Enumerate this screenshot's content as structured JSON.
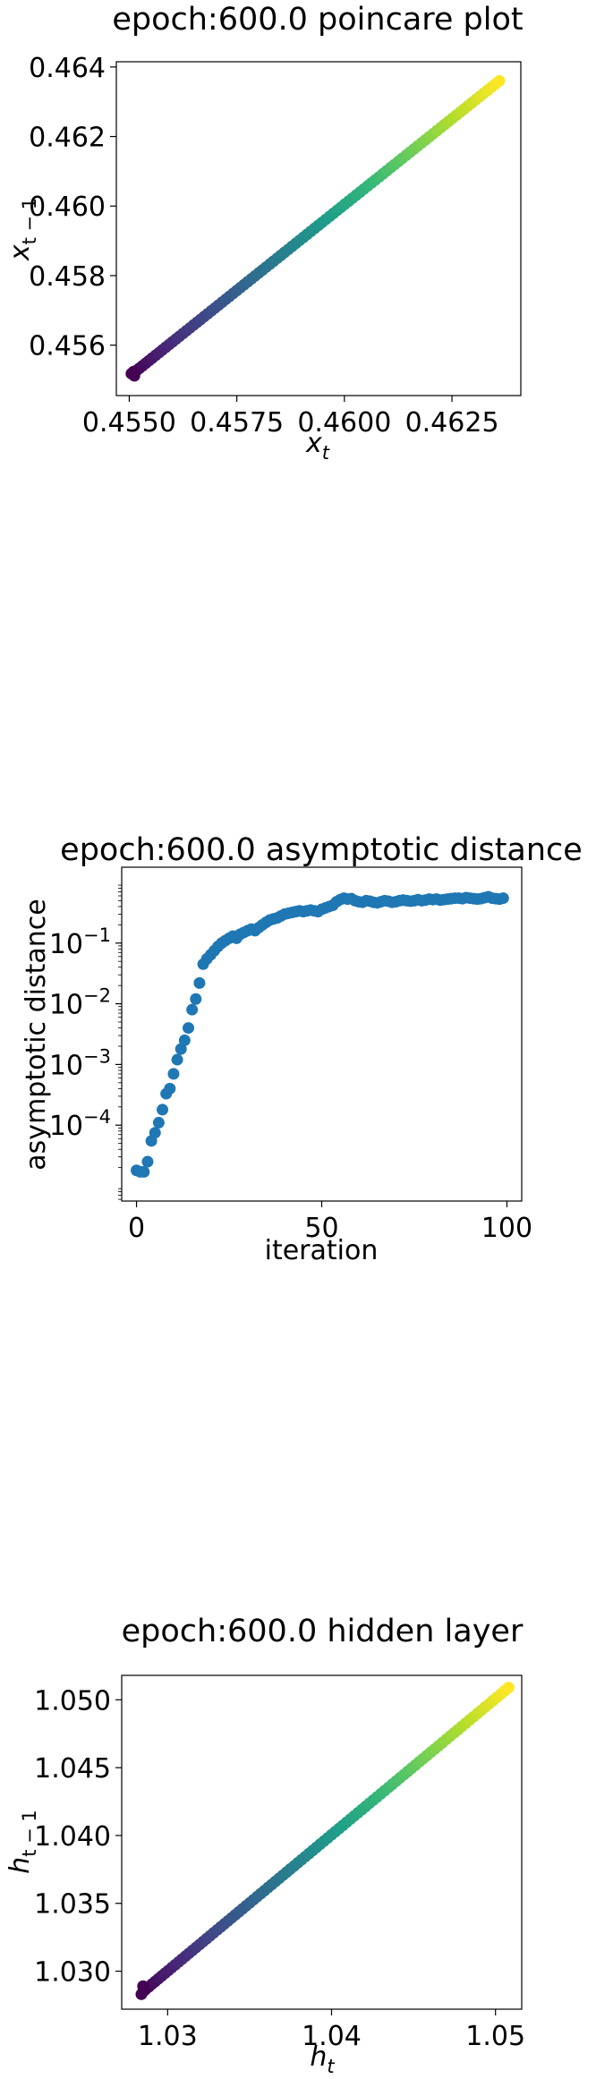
{
  "chart_data": [
    {
      "type": "scatter",
      "title": "epoch:600.0 poincare plot",
      "xlabel": "x_t",
      "ylabel": "x_{t-1}",
      "xlim": [
        0.4547,
        0.4641
      ],
      "ylim": [
        0.45455,
        0.46415
      ],
      "xticks": [
        0.455,
        0.4575,
        0.46,
        0.4625
      ],
      "xtick_labels": [
        "0.4550",
        "0.4575",
        "0.4600",
        "0.4625"
      ],
      "yticks": [
        0.456,
        0.458,
        0.46,
        0.462,
        0.464
      ],
      "ytick_labels": [
        "0.456",
        "0.458",
        "0.460",
        "0.462",
        "0.464"
      ],
      "colormap": "viridis",
      "x_start": 0.4551,
      "x_end": 0.4636,
      "y_start": 0.4552,
      "y_end": 0.4636,
      "num_points": 100,
      "grid": false
    },
    {
      "type": "scatter",
      "title": "epoch:600.0 asymptotic distance",
      "xlabel": "iteration",
      "ylabel": "asymptotic distance",
      "yscale": "log",
      "xlim": [
        -4,
        104
      ],
      "ylim_log10": [
        -5.25,
        0.25
      ],
      "xticks": [
        0,
        50,
        100
      ],
      "xtick_labels": [
        "0",
        "50",
        "100"
      ],
      "yticks_log10": [
        -4,
        -3,
        -2,
        -1
      ],
      "ytick_labels": [
        "10",
        "10",
        "10",
        "10"
      ],
      "ytick_exponents": [
        "−4",
        "−3",
        "−2",
        "−1"
      ],
      "color": "#1f77b4",
      "x": [
        0,
        1,
        2,
        3,
        4,
        5,
        6,
        7,
        8,
        9,
        10,
        11,
        12,
        13,
        14,
        15,
        16,
        17,
        18,
        19,
        20,
        21,
        22,
        23,
        24,
        25,
        26,
        27,
        28,
        29,
        30,
        31,
        32,
        33,
        34,
        35,
        36,
        37,
        38,
        39,
        40,
        41,
        42,
        43,
        44,
        45,
        46,
        47,
        48,
        49,
        50,
        51,
        52,
        53,
        54,
        55,
        56,
        57,
        58,
        59,
        60,
        61,
        62,
        63,
        64,
        65,
        66,
        67,
        68,
        69,
        70,
        71,
        72,
        73,
        74,
        75,
        76,
        77,
        78,
        79,
        80,
        81,
        82,
        83,
        84,
        85,
        86,
        87,
        88,
        89,
        90,
        91,
        92,
        93,
        94,
        95,
        96,
        97,
        98,
        99
      ],
      "y": [
        1.8e-05,
        1.7e-05,
        1.7e-05,
        2.5e-05,
        5.5e-05,
        7.5e-05,
        0.00011,
        0.00018,
        0.00033,
        0.0004,
        0.0007,
        0.0012,
        0.0018,
        0.0025,
        0.004,
        0.008,
        0.012,
        0.022,
        0.045,
        0.055,
        0.064,
        0.075,
        0.088,
        0.1,
        0.11,
        0.12,
        0.13,
        0.12,
        0.14,
        0.15,
        0.16,
        0.17,
        0.16,
        0.18,
        0.2,
        0.22,
        0.24,
        0.25,
        0.26,
        0.28,
        0.3,
        0.31,
        0.32,
        0.33,
        0.34,
        0.33,
        0.34,
        0.35,
        0.34,
        0.33,
        0.36,
        0.38,
        0.4,
        0.42,
        0.48,
        0.52,
        0.55,
        0.53,
        0.54,
        0.5,
        0.48,
        0.47,
        0.5,
        0.49,
        0.47,
        0.46,
        0.48,
        0.5,
        0.49,
        0.47,
        0.48,
        0.5,
        0.51,
        0.5,
        0.49,
        0.5,
        0.52,
        0.5,
        0.51,
        0.53,
        0.52,
        0.53,
        0.51,
        0.52,
        0.53,
        0.54,
        0.55,
        0.55,
        0.54,
        0.56,
        0.55,
        0.54,
        0.53,
        0.54,
        0.56,
        0.58,
        0.55,
        0.54,
        0.53,
        0.55
      ],
      "grid": false
    },
    {
      "type": "scatter",
      "title": "epoch:600.0 hidden layer",
      "xlabel": "h_t",
      "ylabel": "h_{t-1}",
      "xlim": [
        1.0272,
        1.0516
      ],
      "ylim": [
        1.0272,
        1.0518
      ],
      "xticks": [
        1.03,
        1.04,
        1.05
      ],
      "xtick_labels": [
        "1.03",
        "1.04",
        "1.05"
      ],
      "yticks": [
        1.03,
        1.035,
        1.04,
        1.045,
        1.05
      ],
      "ytick_labels": [
        "1.030",
        "1.035",
        "1.040",
        "1.045",
        "1.050"
      ],
      "colormap": "viridis",
      "x_start": 1.0285,
      "x_end": 1.0508,
      "y_start": 1.0285,
      "y_end": 1.0509,
      "num_points": 100,
      "grid": false
    }
  ],
  "axis_label_parts": {
    "x_t": {
      "base": "x",
      "sub": "t"
    },
    "x_t1": {
      "base": "x",
      "sub": "t − 1"
    },
    "h_t": {
      "base": "h",
      "sub": "t"
    },
    "h_t1": {
      "base": "h",
      "sub": "t − 1"
    }
  }
}
